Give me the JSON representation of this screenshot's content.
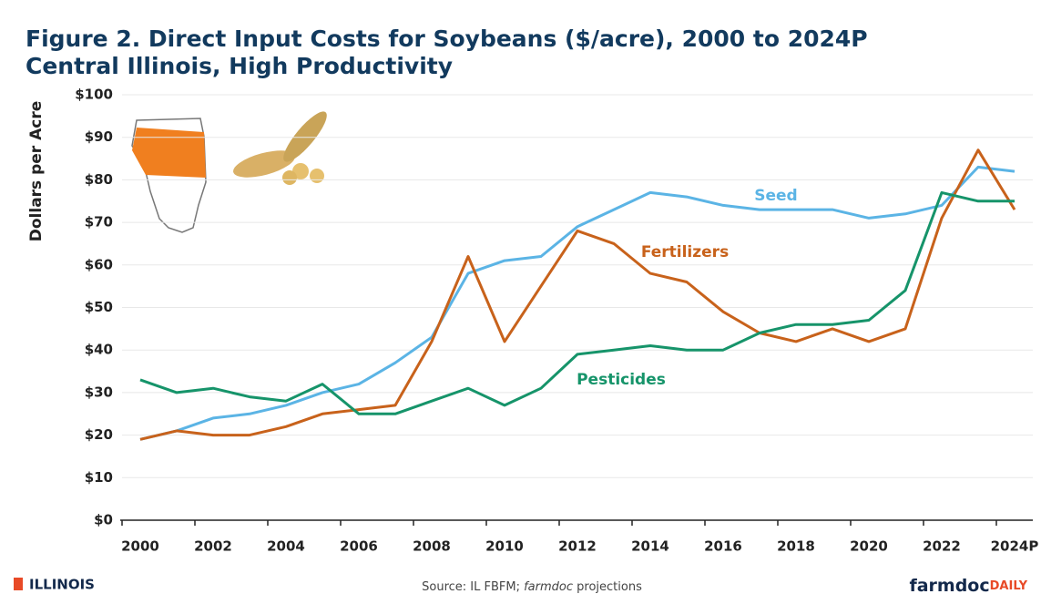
{
  "chart_data": {
    "type": "line",
    "title": "Figure 2. Direct Input Costs for Soybeans ($/acre), 2000 to 2024P",
    "subtitle": "Central Illinois, High Productivity",
    "y_label": "Dollars per Acre",
    "categories": [
      "2000",
      null,
      "2002",
      null,
      "2004",
      null,
      "2006",
      null,
      "2008",
      null,
      "2010",
      null,
      "2012",
      null,
      "2014",
      null,
      "2016",
      null,
      "2018",
      null,
      "2020",
      null,
      "2022",
      null,
      "2024P"
    ],
    "series": [
      {
        "name": "Seed",
        "color": "#5bb4e5",
        "values": [
          19,
          21,
          24,
          25,
          27,
          30,
          32,
          37,
          43,
          58,
          61,
          62,
          69,
          73,
          77,
          76,
          74,
          73,
          73,
          73,
          71,
          72,
          74,
          83,
          82
        ]
      },
      {
        "name": "Fertilizers",
        "color": "#c8621b",
        "values": [
          19,
          21,
          20,
          20,
          22,
          25,
          26,
          27,
          42,
          62,
          42,
          55,
          68,
          65,
          58,
          56,
          49,
          44,
          42,
          45,
          42,
          45,
          71,
          87,
          73
        ]
      },
      {
        "name": "Pesticides",
        "color": "#16946a",
        "values": [
          33,
          30,
          31,
          29,
          28,
          32,
          25,
          25,
          28,
          31,
          27,
          31,
          39,
          40,
          41,
          40,
          40,
          44,
          46,
          46,
          47,
          54,
          77,
          75,
          75
        ]
      }
    ],
    "ylim": [
      0,
      100
    ],
    "yticks": [
      {
        "value": 0,
        "label": "$0"
      },
      {
        "value": 10,
        "label": "$10"
      },
      {
        "value": 20,
        "label": "$20"
      },
      {
        "value": 30,
        "label": "$30"
      },
      {
        "value": 40,
        "label": "$40"
      },
      {
        "value": 50,
        "label": "$50"
      },
      {
        "value": 60,
        "label": "$60"
      },
      {
        "value": 70,
        "label": "$70"
      },
      {
        "value": 80,
        "label": "$80"
      },
      {
        "value": 90,
        "label": "$90"
      },
      {
        "value": 100,
        "label": "$100"
      }
    ],
    "grid": true
  },
  "footer": {
    "logo": "ILLINOIS",
    "source": [
      "Source: IL FBFM; ",
      "farmdoc",
      " projections"
    ],
    "brand": [
      "farmdoc",
      "DAILY"
    ]
  }
}
